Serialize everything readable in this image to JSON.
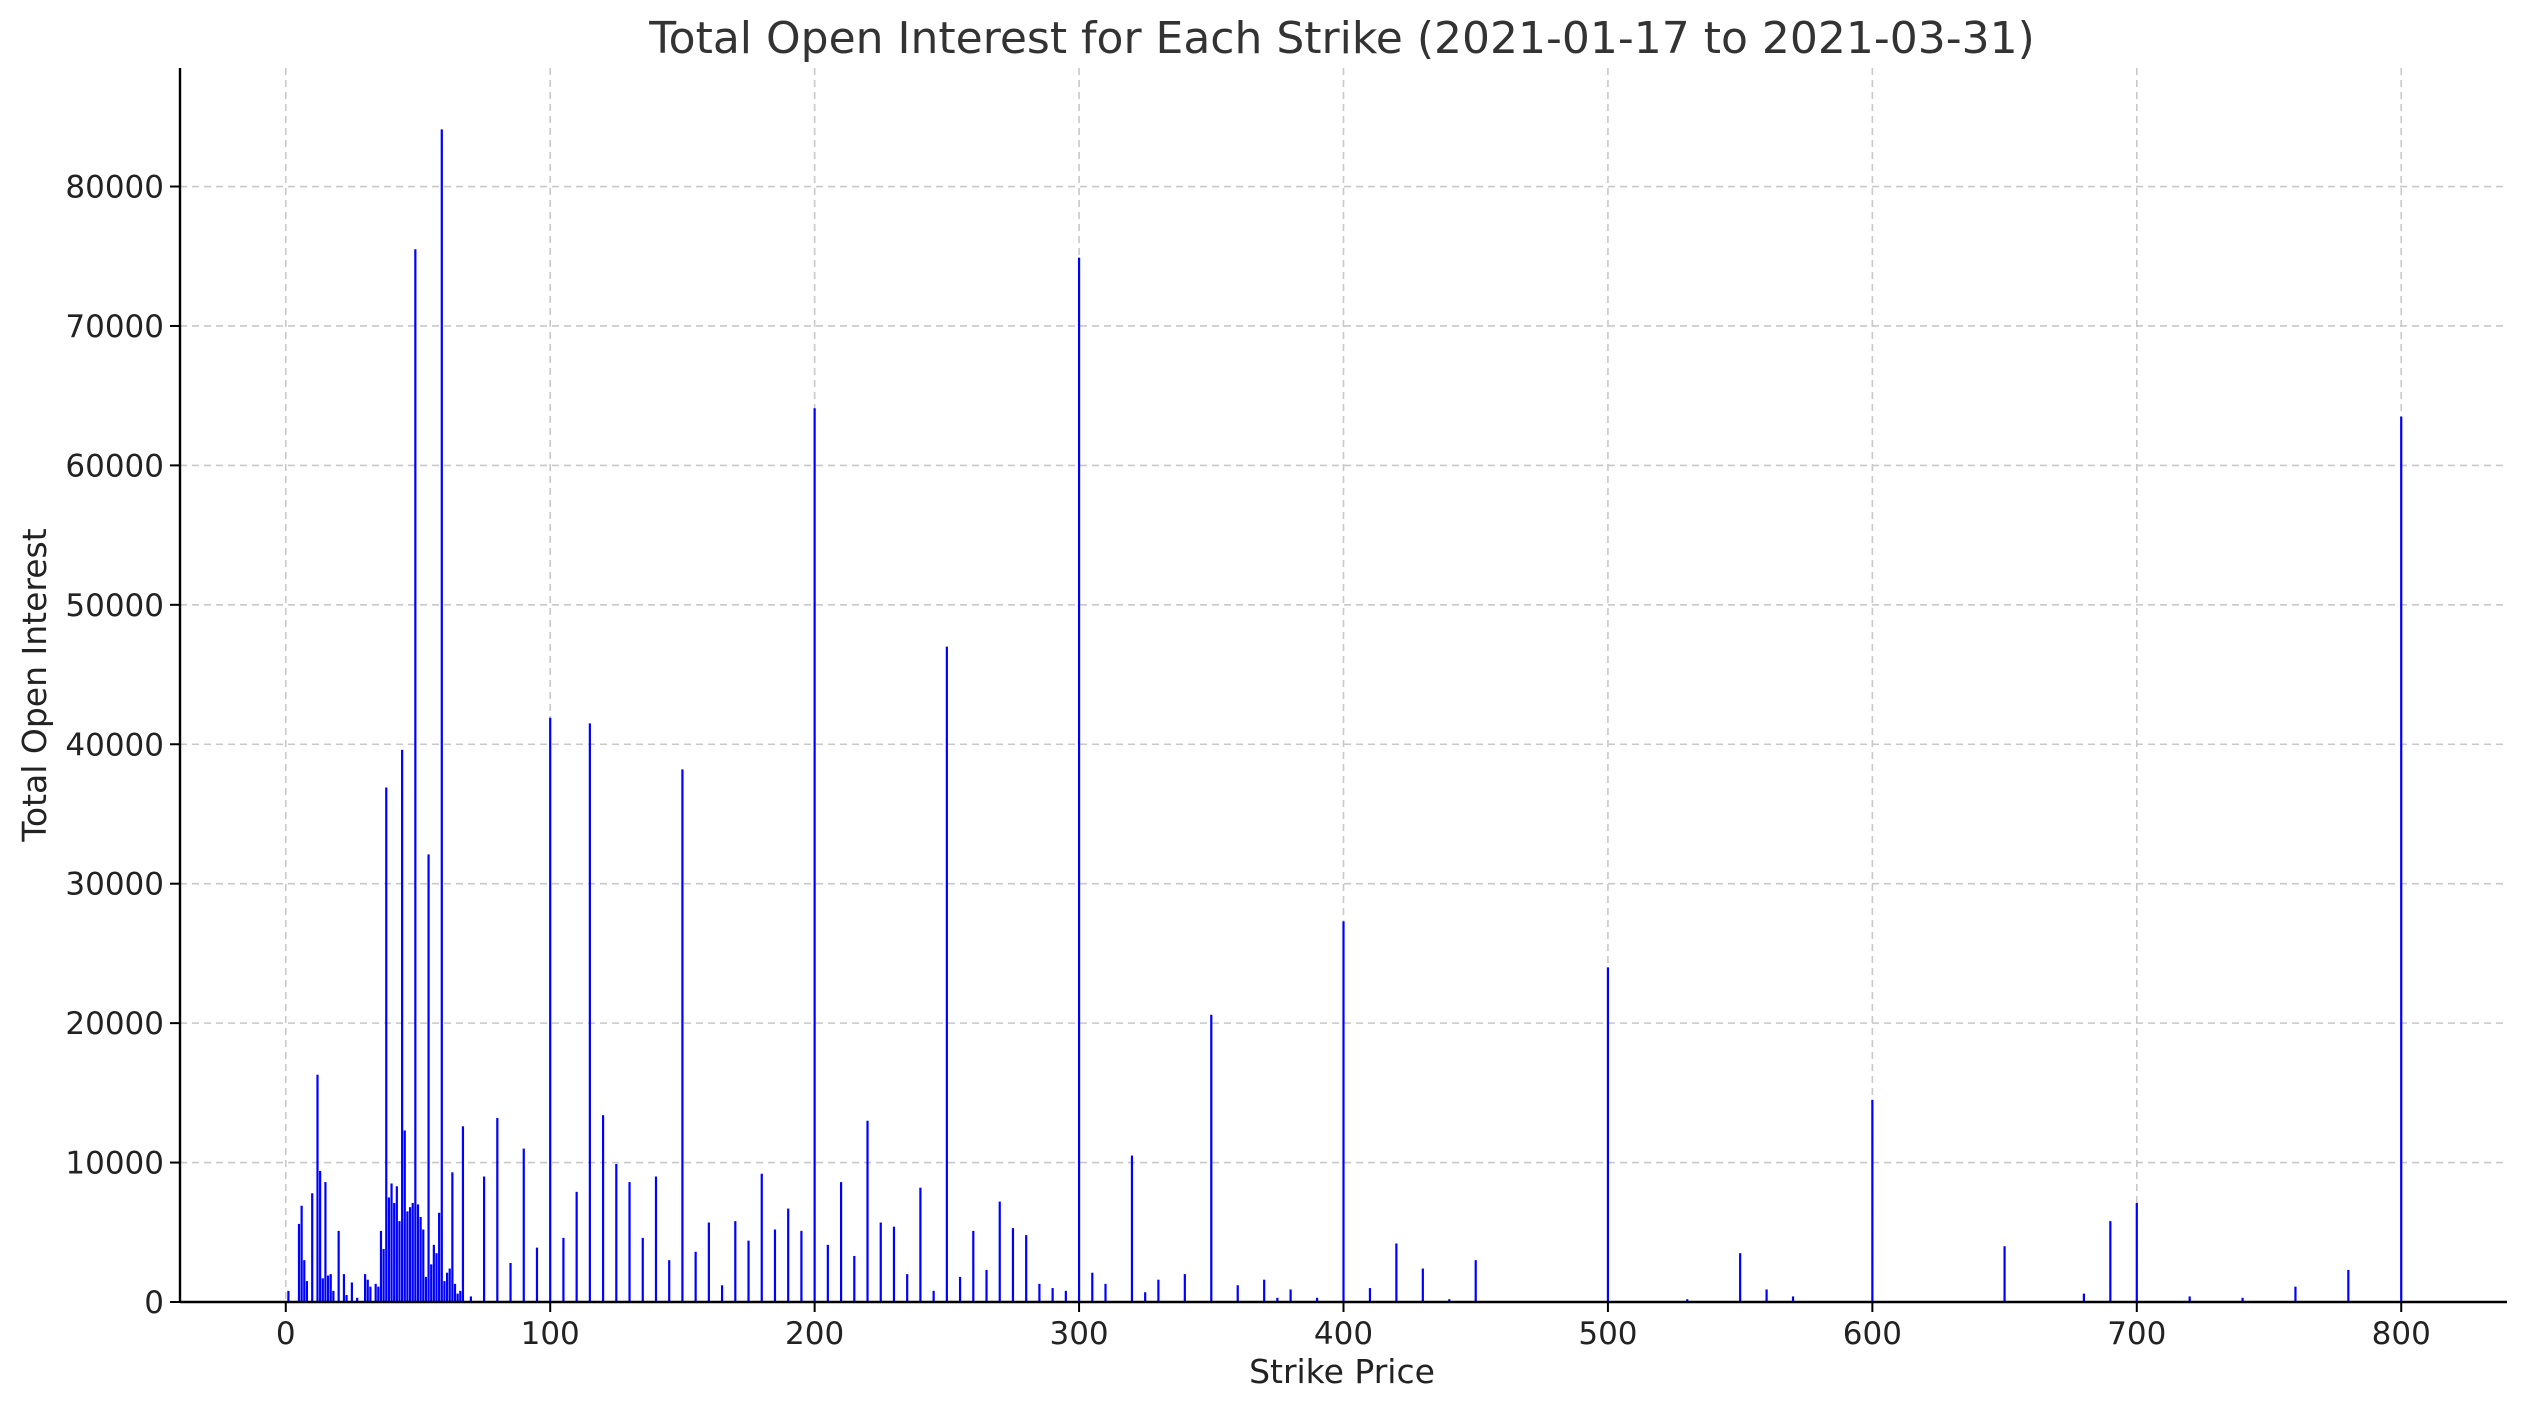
{
  "chart_data": {
    "type": "bar",
    "title": "Total Open Interest for Each Strike (2021-01-17 to 2021-03-31)",
    "xlabel": "Strike Price",
    "ylabel": "Total Open Interest",
    "xlim": [
      -40,
      840
    ],
    "ylim": [
      0,
      88500
    ],
    "xticks": [
      0,
      100,
      200,
      300,
      400,
      500,
      600,
      700,
      800
    ],
    "yticks": [
      0,
      10000,
      20000,
      30000,
      40000,
      50000,
      60000,
      70000,
      80000
    ],
    "grid": true,
    "bar_color": "#0000ff",
    "x": [
      1,
      5,
      6,
      7,
      8,
      10,
      12,
      13,
      14,
      15,
      16,
      17,
      18,
      20,
      22,
      23,
      25,
      27,
      30,
      31,
      32,
      34,
      35,
      36,
      37,
      38,
      39,
      40,
      41,
      42,
      43,
      44,
      45,
      46,
      47,
      48,
      49,
      50,
      51,
      52,
      53,
      54,
      55,
      56,
      57,
      58,
      59,
      60,
      61,
      62,
      63,
      64,
      65,
      66,
      67,
      70,
      75,
      80,
      85,
      90,
      95,
      100,
      105,
      110,
      115,
      120,
      125,
      130,
      135,
      140,
      145,
      150,
      155,
      160,
      165,
      170,
      175,
      180,
      185,
      190,
      195,
      200,
      205,
      210,
      215,
      220,
      225,
      230,
      235,
      240,
      245,
      250,
      255,
      260,
      265,
      270,
      275,
      280,
      285,
      290,
      295,
      300,
      305,
      310,
      320,
      325,
      330,
      340,
      350,
      360,
      370,
      375,
      380,
      390,
      400,
      410,
      420,
      430,
      440,
      450,
      500,
      530,
      550,
      560,
      570,
      600,
      650,
      680,
      690,
      700,
      720,
      740,
      760,
      780,
      800
    ],
    "values": [
      800,
      5600,
      6900,
      3000,
      1500,
      7800,
      16300,
      9400,
      1700,
      8600,
      1900,
      2000,
      800,
      5100,
      2000,
      500,
      1400,
      300,
      2000,
      1600,
      1100,
      1300,
      1100,
      5100,
      3800,
      36900,
      7500,
      8500,
      7100,
      8300,
      5800,
      39600,
      12300,
      6500,
      6800,
      7100,
      75500,
      7000,
      6100,
      5200,
      1800,
      32100,
      2700,
      4100,
      3500,
      6400,
      84100,
      1500,
      2100,
      2400,
      9300,
      1300,
      600,
      800,
      12600,
      400,
      9000,
      13200,
      2800,
      11000,
      3900,
      41900,
      4600,
      7900,
      41500,
      13400,
      9900,
      8600,
      4600,
      9000,
      3000,
      38200,
      3600,
      5700,
      1200,
      5800,
      4400,
      9200,
      5200,
      6700,
      5100,
      64100,
      4100,
      8600,
      3300,
      13000,
      5700,
      5400,
      2000,
      8200,
      800,
      47000,
      1800,
      5100,
      2300,
      7200,
      5300,
      4800,
      1300,
      1000,
      800,
      74900,
      2100,
      1300,
      10500,
      700,
      1600,
      2000,
      20600,
      1200,
      1600,
      300,
      900,
      300,
      27300,
      1000,
      4200,
      2400,
      200,
      3000,
      24000,
      200,
      3500,
      900,
      400,
      14500,
      4000,
      600,
      5800,
      7100,
      400,
      300,
      1100,
      2300,
      63500
    ]
  }
}
